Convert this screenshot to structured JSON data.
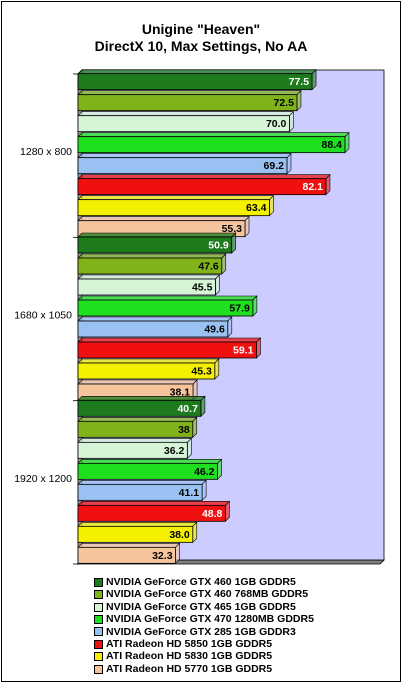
{
  "chart_data": {
    "type": "bar",
    "orientation": "horizontal",
    "title": [
      "Unigine \"Heaven\"",
      "DirectX 10, Max Settings, No AA"
    ],
    "categories": [
      "1280 x 800",
      "1680 x 1050",
      "1920 x 1200"
    ],
    "series": [
      {
        "name": "NVIDIA GeForce GTX 460 1GB GDDR5",
        "color": "#1d7a1d",
        "label_color": "#ffffff",
        "values": [
          77.5,
          50.9,
          40.7
        ],
        "labels": [
          "77.5",
          "50.9",
          "40.7"
        ]
      },
      {
        "name": "NVIDIA GeForce GTX 460 768MB GDDR5",
        "color": "#80b31a",
        "label_color": "#000000",
        "values": [
          72.5,
          47.6,
          38
        ],
        "labels": [
          "72.5",
          "47.6",
          "38"
        ]
      },
      {
        "name": "NVIDIA GeForce GTX 465 1GB GDDR5",
        "color": "#d6f5d6",
        "label_color": "#000000",
        "values": [
          70.0,
          45.5,
          36.2
        ],
        "labels": [
          "70.0",
          "45.5",
          "36.2"
        ]
      },
      {
        "name": "NVIDIA GeForce GTX 470 1280MB GDDR5",
        "color": "#1fe01f",
        "label_color": "#000000",
        "values": [
          88.4,
          57.9,
          46.2
        ],
        "labels": [
          "88.4",
          "57.9",
          "46.2"
        ]
      },
      {
        "name": "NVIDIA GeForce GTX 285 1GB GDDR3",
        "color": "#99c2f2",
        "label_color": "#000000",
        "values": [
          69.2,
          49.6,
          41.1
        ],
        "labels": [
          "69.2",
          "49.6",
          "41.1"
        ]
      },
      {
        "name": "ATI Radeon HD 5850 1GB GDDR5",
        "color": "#f01010",
        "label_color": "#ffffff",
        "values": [
          82.1,
          59.1,
          48.8
        ],
        "labels": [
          "82.1",
          "59.1",
          "48.8"
        ]
      },
      {
        "name": "ATI Radeon HD 5830 1GB GDDR5",
        "color": "#f5f000",
        "label_color": "#000000",
        "values": [
          63.4,
          45.3,
          38.0
        ],
        "labels": [
          "63.4",
          "45.3",
          "38.0"
        ]
      },
      {
        "name": "ATI Radeon HD 5770 1GB GDDR5",
        "color": "#f5c49c",
        "label_color": "#000000",
        "values": [
          55.3,
          38.1,
          32.3
        ],
        "labels": [
          "55.3",
          "38.1",
          "32.3"
        ]
      }
    ],
    "xlim": [
      0,
      100
    ],
    "plot_background": "#ccccff",
    "grid": false,
    "legend_position": "bottom"
  }
}
